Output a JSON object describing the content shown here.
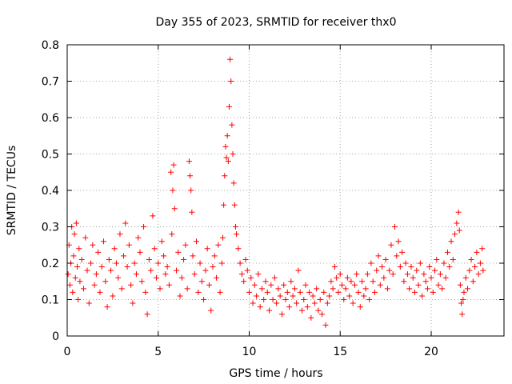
{
  "chart_data": {
    "type": "scatter",
    "title": "Day 355 of 2023, SRMTID for receiver thx0",
    "xlabel": "GPS time / hours",
    "ylabel": "SRMTID / TECUs",
    "xlim": [
      0,
      24
    ],
    "ylim": [
      0,
      0.8
    ],
    "xticks": [
      0,
      5,
      10,
      15,
      20
    ],
    "yticks": [
      0,
      0.1,
      0.2,
      0.3,
      0.4,
      0.5,
      0.6,
      0.7,
      0.8
    ],
    "grid": true,
    "marker": "+",
    "color": "#ff0000",
    "series": [
      {
        "name": "SRMTID",
        "points": [
          [
            0.05,
            0.17
          ],
          [
            0.1,
            0.25
          ],
          [
            0.15,
            0.14
          ],
          [
            0.2,
            0.2
          ],
          [
            0.25,
            0.3
          ],
          [
            0.3,
            0.12
          ],
          [
            0.35,
            0.22
          ],
          [
            0.4,
            0.28
          ],
          [
            0.45,
            0.16
          ],
          [
            0.5,
            0.31
          ],
          [
            0.55,
            0.19
          ],
          [
            0.6,
            0.1
          ],
          [
            0.65,
            0.24
          ],
          [
            0.7,
            0.15
          ],
          [
            0.8,
            0.21
          ],
          [
            0.9,
            0.13
          ],
          [
            1.0,
            0.27
          ],
          [
            1.1,
            0.18
          ],
          [
            1.2,
            0.09
          ],
          [
            1.3,
            0.2
          ],
          [
            1.4,
            0.25
          ],
          [
            1.5,
            0.14
          ],
          [
            1.6,
            0.17
          ],
          [
            1.7,
            0.23
          ],
          [
            1.8,
            0.12
          ],
          [
            1.9,
            0.19
          ],
          [
            2.0,
            0.26
          ],
          [
            2.1,
            0.15
          ],
          [
            2.2,
            0.08
          ],
          [
            2.3,
            0.21
          ],
          [
            2.4,
            0.18
          ],
          [
            2.5,
            0.11
          ],
          [
            2.6,
            0.24
          ],
          [
            2.7,
            0.2
          ],
          [
            2.8,
            0.16
          ],
          [
            2.9,
            0.28
          ],
          [
            3.0,
            0.13
          ],
          [
            3.1,
            0.22
          ],
          [
            3.2,
            0.31
          ],
          [
            3.3,
            0.19
          ],
          [
            3.4,
            0.25
          ],
          [
            3.5,
            0.14
          ],
          [
            3.6,
            0.09
          ],
          [
            3.7,
            0.2
          ],
          [
            3.8,
            0.17
          ],
          [
            3.9,
            0.27
          ],
          [
            4.0,
            0.23
          ],
          [
            4.1,
            0.15
          ],
          [
            4.2,
            0.3
          ],
          [
            4.3,
            0.12
          ],
          [
            4.4,
            0.06
          ],
          [
            4.5,
            0.21
          ],
          [
            4.6,
            0.18
          ],
          [
            4.7,
            0.33
          ],
          [
            4.8,
            0.24
          ],
          [
            4.9,
            0.16
          ],
          [
            5.0,
            0.2
          ],
          [
            5.1,
            0.13
          ],
          [
            5.2,
            0.26
          ],
          [
            5.3,
            0.22
          ],
          [
            5.4,
            0.17
          ],
          [
            5.5,
            0.19
          ],
          [
            5.6,
            0.14
          ],
          [
            5.7,
            0.45
          ],
          [
            5.75,
            0.28
          ],
          [
            5.8,
            0.4
          ],
          [
            5.85,
            0.47
          ],
          [
            5.9,
            0.35
          ],
          [
            6.0,
            0.18
          ],
          [
            6.1,
            0.23
          ],
          [
            6.2,
            0.11
          ],
          [
            6.3,
            0.16
          ],
          [
            6.4,
            0.21
          ],
          [
            6.5,
            0.25
          ],
          [
            6.6,
            0.13
          ],
          [
            6.7,
            0.48
          ],
          [
            6.75,
            0.44
          ],
          [
            6.8,
            0.4
          ],
          [
            6.85,
            0.34
          ],
          [
            6.9,
            0.22
          ],
          [
            7.0,
            0.17
          ],
          [
            7.1,
            0.26
          ],
          [
            7.2,
            0.12
          ],
          [
            7.3,
            0.2
          ],
          [
            7.4,
            0.15
          ],
          [
            7.5,
            0.1
          ],
          [
            7.6,
            0.18
          ],
          [
            7.7,
            0.24
          ],
          [
            7.8,
            0.14
          ],
          [
            7.9,
            0.07
          ],
          [
            8.0,
            0.19
          ],
          [
            8.1,
            0.22
          ],
          [
            8.2,
            0.16
          ],
          [
            8.3,
            0.25
          ],
          [
            8.4,
            0.12
          ],
          [
            8.5,
            0.2
          ],
          [
            8.55,
            0.27
          ],
          [
            8.6,
            0.36
          ],
          [
            8.65,
            0.44
          ],
          [
            8.7,
            0.52
          ],
          [
            8.75,
            0.49
          ],
          [
            8.8,
            0.55
          ],
          [
            8.85,
            0.48
          ],
          [
            8.9,
            0.63
          ],
          [
            8.95,
            0.76
          ],
          [
            9.0,
            0.7
          ],
          [
            9.05,
            0.58
          ],
          [
            9.1,
            0.5
          ],
          [
            9.15,
            0.42
          ],
          [
            9.2,
            0.36
          ],
          [
            9.25,
            0.3
          ],
          [
            9.3,
            0.28
          ],
          [
            9.4,
            0.24
          ],
          [
            9.5,
            0.2
          ],
          [
            9.6,
            0.17
          ],
          [
            9.7,
            0.15
          ],
          [
            9.8,
            0.21
          ],
          [
            9.9,
            0.18
          ],
          [
            10.0,
            0.12
          ],
          [
            10.1,
            0.16
          ],
          [
            10.2,
            0.09
          ],
          [
            10.3,
            0.14
          ],
          [
            10.4,
            0.11
          ],
          [
            10.5,
            0.17
          ],
          [
            10.6,
            0.08
          ],
          [
            10.7,
            0.13
          ],
          [
            10.8,
            0.1
          ],
          [
            10.9,
            0.15
          ],
          [
            11.0,
            0.12
          ],
          [
            11.1,
            0.07
          ],
          [
            11.2,
            0.14
          ],
          [
            11.3,
            0.1
          ],
          [
            11.4,
            0.16
          ],
          [
            11.5,
            0.09
          ],
          [
            11.6,
            0.13
          ],
          [
            11.7,
            0.11
          ],
          [
            11.8,
            0.06
          ],
          [
            11.9,
            0.14
          ],
          [
            12.0,
            0.1
          ],
          [
            12.1,
            0.12
          ],
          [
            12.2,
            0.08
          ],
          [
            12.3,
            0.15
          ],
          [
            12.4,
            0.11
          ],
          [
            12.5,
            0.13
          ],
          [
            12.6,
            0.09
          ],
          [
            12.7,
            0.18
          ],
          [
            12.8,
            0.12
          ],
          [
            12.9,
            0.07
          ],
          [
            13.0,
            0.1
          ],
          [
            13.1,
            0.14
          ],
          [
            13.2,
            0.08
          ],
          [
            13.3,
            0.12
          ],
          [
            13.4,
            0.05
          ],
          [
            13.5,
            0.11
          ],
          [
            13.6,
            0.09
          ],
          [
            13.7,
            0.13
          ],
          [
            13.8,
            0.07
          ],
          [
            13.9,
            0.1
          ],
          [
            14.0,
            0.06
          ],
          [
            14.1,
            0.12
          ],
          [
            14.2,
            0.03
          ],
          [
            14.3,
            0.09
          ],
          [
            14.4,
            0.11
          ],
          [
            14.5,
            0.15
          ],
          [
            14.6,
            0.13
          ],
          [
            14.7,
            0.19
          ],
          [
            14.8,
            0.16
          ],
          [
            14.9,
            0.12
          ],
          [
            15.0,
            0.17
          ],
          [
            15.1,
            0.14
          ],
          [
            15.2,
            0.1
          ],
          [
            15.3,
            0.13
          ],
          [
            15.4,
            0.16
          ],
          [
            15.5,
            0.11
          ],
          [
            15.6,
            0.15
          ],
          [
            15.7,
            0.09
          ],
          [
            15.8,
            0.14
          ],
          [
            15.9,
            0.17
          ],
          [
            16.0,
            0.12
          ],
          [
            16.1,
            0.08
          ],
          [
            16.2,
            0.15
          ],
          [
            16.3,
            0.11
          ],
          [
            16.4,
            0.13
          ],
          [
            16.5,
            0.17
          ],
          [
            16.6,
            0.1
          ],
          [
            16.7,
            0.2
          ],
          [
            16.8,
            0.15
          ],
          [
            16.9,
            0.12
          ],
          [
            17.0,
            0.18
          ],
          [
            17.1,
            0.22
          ],
          [
            17.2,
            0.14
          ],
          [
            17.3,
            0.19
          ],
          [
            17.4,
            0.16
          ],
          [
            17.5,
            0.21
          ],
          [
            17.6,
            0.13
          ],
          [
            17.7,
            0.18
          ],
          [
            17.8,
            0.25
          ],
          [
            17.9,
            0.17
          ],
          [
            18.0,
            0.3
          ],
          [
            18.1,
            0.22
          ],
          [
            18.2,
            0.26
          ],
          [
            18.3,
            0.19
          ],
          [
            18.4,
            0.23
          ],
          [
            18.5,
            0.15
          ],
          [
            18.6,
            0.2
          ],
          [
            18.7,
            0.17
          ],
          [
            18.8,
            0.13
          ],
          [
            18.9,
            0.19
          ],
          [
            19.0,
            0.16
          ],
          [
            19.1,
            0.12
          ],
          [
            19.2,
            0.18
          ],
          [
            19.3,
            0.14
          ],
          [
            19.4,
            0.2
          ],
          [
            19.5,
            0.11
          ],
          [
            19.6,
            0.17
          ],
          [
            19.7,
            0.15
          ],
          [
            19.8,
            0.13
          ],
          [
            19.9,
            0.19
          ],
          [
            20.0,
            0.16
          ],
          [
            20.1,
            0.12
          ],
          [
            20.2,
            0.18
          ],
          [
            20.3,
            0.21
          ],
          [
            20.4,
            0.14
          ],
          [
            20.5,
            0.17
          ],
          [
            20.6,
            0.13
          ],
          [
            20.7,
            0.2
          ],
          [
            20.8,
            0.16
          ],
          [
            20.9,
            0.23
          ],
          [
            21.0,
            0.19
          ],
          [
            21.1,
            0.26
          ],
          [
            21.2,
            0.21
          ],
          [
            21.3,
            0.28
          ],
          [
            21.4,
            0.31
          ],
          [
            21.5,
            0.34
          ],
          [
            21.55,
            0.29
          ],
          [
            21.6,
            0.14
          ],
          [
            21.65,
            0.09
          ],
          [
            21.7,
            0.06
          ],
          [
            21.75,
            0.1
          ],
          [
            21.8,
            0.12
          ],
          [
            21.9,
            0.16
          ],
          [
            22.0,
            0.13
          ],
          [
            22.1,
            0.18
          ],
          [
            22.2,
            0.21
          ],
          [
            22.3,
            0.15
          ],
          [
            22.4,
            0.19
          ],
          [
            22.5,
            0.23
          ],
          [
            22.6,
            0.17
          ],
          [
            22.7,
            0.2
          ],
          [
            22.8,
            0.24
          ],
          [
            22.85,
            0.18
          ]
        ]
      }
    ]
  }
}
